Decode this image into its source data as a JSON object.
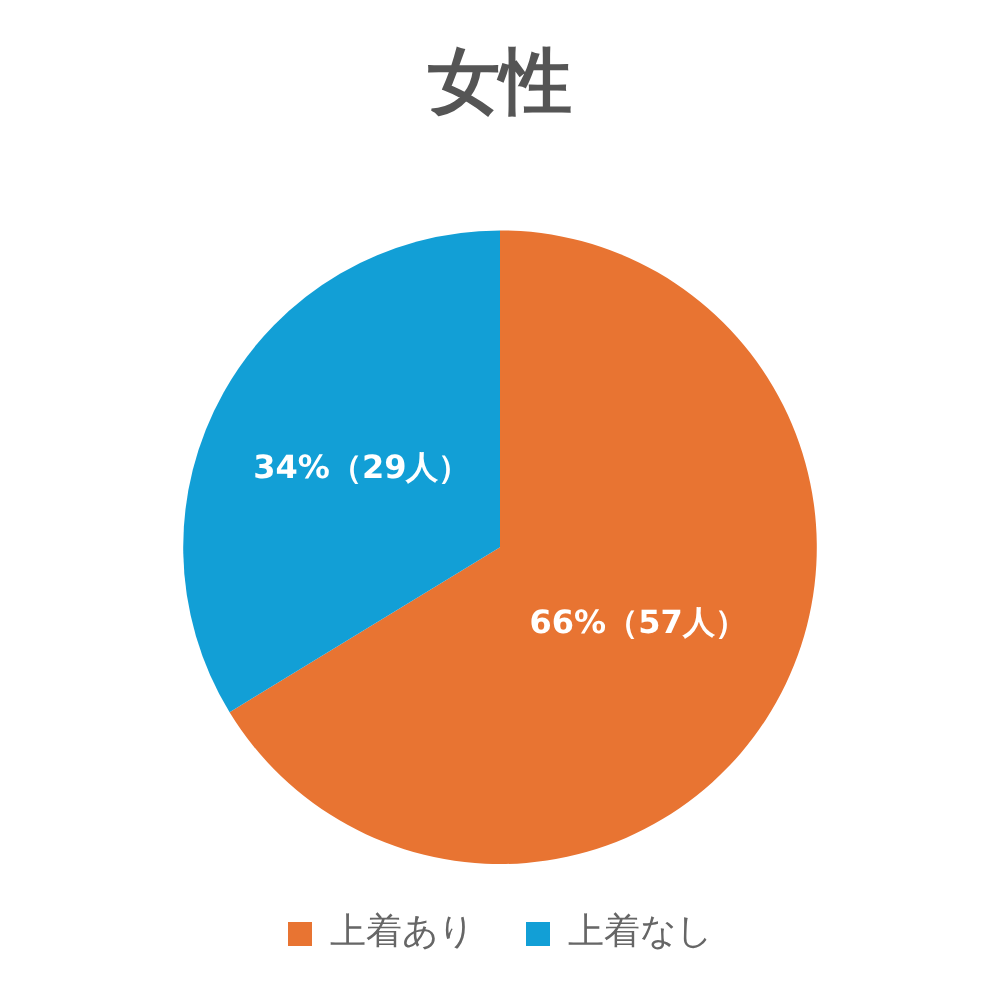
{
  "chart_data": {
    "type": "pie",
    "title": "女性",
    "categories": [
      "上着あり",
      "上着なし"
    ],
    "values": [
      57,
      29
    ],
    "value_labels": [
      "66%（57人）",
      "34%（29人）"
    ],
    "colors": [
      "#e87432",
      "#129fd6"
    ],
    "legend": "bottom"
  }
}
